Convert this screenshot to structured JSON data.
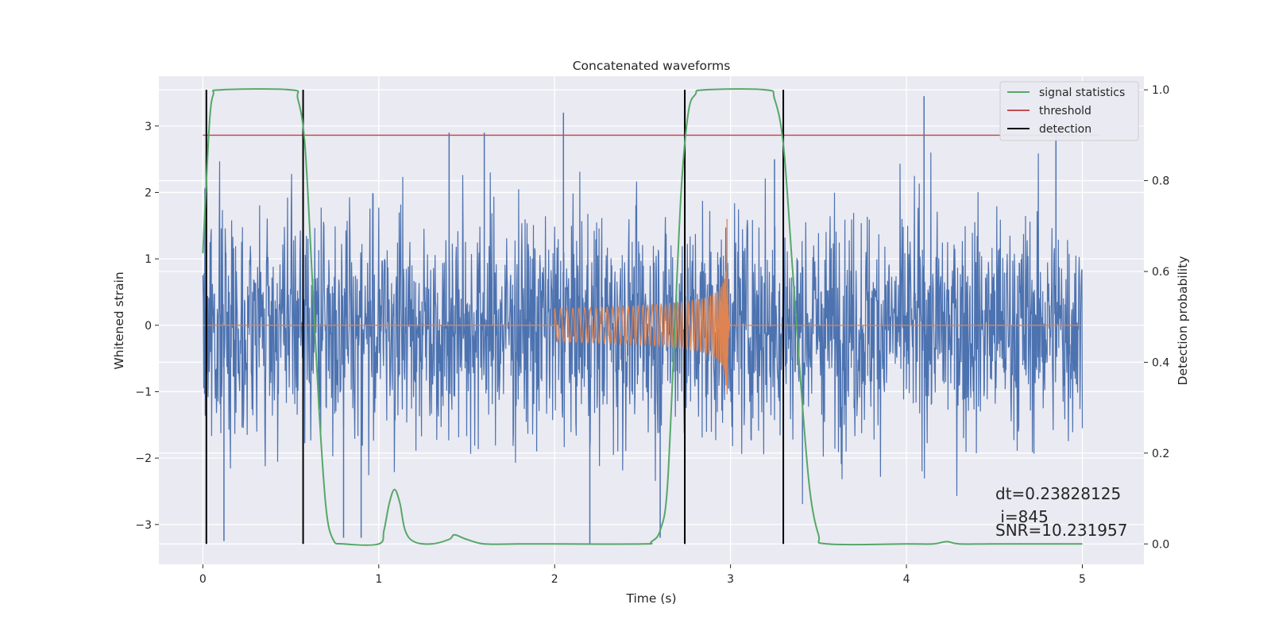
{
  "chart_data": {
    "type": "line",
    "title": "Concatenated waveforms",
    "xlabel": "Time (s)",
    "ylabel": "Whitened strain",
    "y2label": "Detection probability",
    "xlim": [
      -0.25,
      5.35
    ],
    "ylim": [
      -3.6,
      3.75
    ],
    "y2lim": [
      -0.045,
      1.03
    ],
    "x_ticks": [
      0,
      1,
      2,
      3,
      4,
      5
    ],
    "x_tick_labels": [
      "0",
      "1",
      "2",
      "3",
      "4",
      "5"
    ],
    "y_ticks": [
      -3,
      -2,
      -1,
      0,
      1,
      2,
      3
    ],
    "y_tick_labels": [
      "−3",
      "−2",
      "−1",
      "0",
      "1",
      "2",
      "3"
    ],
    "y2_ticks": [
      0.0,
      0.2,
      0.4,
      0.6,
      0.8,
      1.0
    ],
    "y2_tick_labels": [
      "0.0",
      "0.2",
      "0.4",
      "0.6",
      "0.8",
      "1.0"
    ],
    "grid": true,
    "legend_position": "top-right",
    "legend": [
      {
        "label": "signal statistics",
        "color": "#55a868"
      },
      {
        "label": "threshold",
        "color": "#c44e52"
      },
      {
        "label": "detection",
        "color": "#000000"
      }
    ],
    "series": [
      {
        "role": "whitened noise strain",
        "color": "#4c72b0",
        "x_range": [
          0,
          5
        ],
        "typical_amplitude": 1.0,
        "peak_points": [
          [
            0.12,
            -3.25
          ],
          [
            0.8,
            -3.2
          ],
          [
            0.9,
            -3.2
          ],
          [
            1.4,
            2.9
          ],
          [
            1.6,
            2.9
          ],
          [
            2.05,
            3.2
          ],
          [
            2.2,
            -3.3
          ],
          [
            2.6,
            -3.2
          ],
          [
            3.25,
            2.5
          ],
          [
            4.1,
            3.45
          ],
          [
            4.85,
            3.25
          ]
        ]
      },
      {
        "role": "injected chirp waveform",
        "color": "#dd8452",
        "x_range": [
          2.0,
          3.0
        ],
        "start_amplitude": 0.25,
        "peak_time": 2.98,
        "peak_amplitude": 1.6
      },
      {
        "name": "signal statistics",
        "color": "#55a868",
        "x": [
          0.0,
          0.02,
          0.04,
          0.06,
          0.1,
          0.5,
          0.54,
          0.58,
          0.62,
          0.66,
          0.7,
          0.74,
          0.8,
          1.0,
          1.03,
          1.06,
          1.09,
          1.12,
          1.15,
          1.2,
          1.3,
          1.4,
          1.43,
          1.5,
          1.6,
          1.8,
          2.0,
          2.5,
          2.55,
          2.6,
          2.64,
          2.68,
          2.72,
          2.76,
          2.8,
          2.85,
          3.2,
          3.25,
          3.3,
          3.35,
          3.4,
          3.45,
          3.5,
          3.55,
          4.0,
          4.15,
          4.23,
          4.3,
          4.5,
          5.0
        ],
        "y": [
          0.64,
          0.8,
          0.94,
          0.99,
          1.0,
          1.0,
          0.98,
          0.88,
          0.6,
          0.3,
          0.08,
          0.01,
          0.0,
          0.0,
          0.03,
          0.09,
          0.12,
          0.09,
          0.03,
          0.005,
          0.0,
          0.01,
          0.02,
          0.01,
          0.0,
          0.0,
          0.0,
          0.0,
          0.005,
          0.03,
          0.12,
          0.45,
          0.78,
          0.95,
          0.99,
          1.0,
          1.0,
          0.98,
          0.88,
          0.62,
          0.35,
          0.12,
          0.02,
          0.0,
          0.0,
          0.0,
          0.005,
          0.0,
          0.0,
          0.0
        ]
      },
      {
        "name": "threshold",
        "color": "#c44e52",
        "x": [
          0.0,
          5.1
        ],
        "y2_value": 0.9
      }
    ],
    "detections": [
      0.02,
      0.57,
      2.74,
      3.3
    ],
    "annotations": [
      "dt=0.23828125",
      " i=845",
      "SNR=10.231957"
    ]
  }
}
